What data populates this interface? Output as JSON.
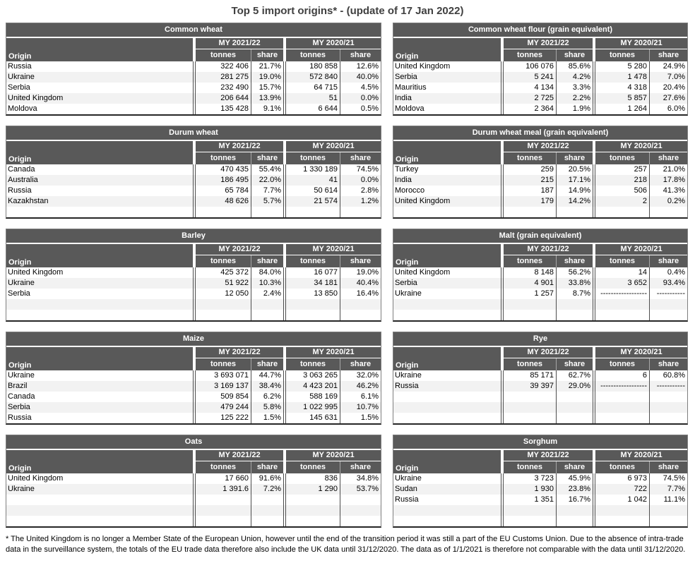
{
  "page_title": "Top 5 import origins* - (update of 17 Jan 2022)",
  "columns": {
    "origin": "Origin",
    "my_2021_22": "MY 2021/22",
    "my_2020_21": "MY 2020/21",
    "tonnes": "tonnes",
    "share": "share"
  },
  "colors": {
    "header_bg": "#595959",
    "header_text": "#ffffff",
    "row_alt": "#f2f2f2",
    "cell_border": "#4d4d4d",
    "outer_border": "#7f7f7f",
    "bottom_border": "#262626",
    "title_color": "#404040"
  },
  "tables": [
    {
      "panel": "left",
      "title": "Common wheat",
      "rows": [
        [
          "Russia",
          "322 406",
          "21.7%",
          "180 858",
          "12.6%"
        ],
        [
          "Ukraine",
          "281 275",
          "19.0%",
          "572 840",
          "40.0%"
        ],
        [
          "Serbia",
          "232 490",
          "15.7%",
          "64 715",
          "4.5%"
        ],
        [
          "United Kingdom",
          "206 644",
          "13.9%",
          "51",
          "0.0%"
        ],
        [
          "Moldova",
          "135 428",
          "9.1%",
          "6 644",
          "0.5%"
        ]
      ]
    },
    {
      "panel": "right",
      "title": "Common wheat flour (grain equivalent)",
      "rows": [
        [
          "United Kingdom",
          "106 076",
          "85.6%",
          "5 280",
          "24.9%"
        ],
        [
          "Serbia",
          "5 241",
          "4.2%",
          "1 478",
          "7.0%"
        ],
        [
          "Mauritius",
          "4 134",
          "3.3%",
          "4 318",
          "20.4%"
        ],
        [
          "India",
          "2 725",
          "2.2%",
          "5 857",
          "27.6%"
        ],
        [
          "Moldova",
          "2 364",
          "1.9%",
          "1 264",
          "6.0%"
        ]
      ]
    },
    {
      "panel": "left",
      "title": "Durum wheat",
      "rows": [
        [
          "Canada",
          "470 435",
          "55.4%",
          "1 330 189",
          "74.5%"
        ],
        [
          "Australia",
          "186 495",
          "22.0%",
          "41",
          "0.0%"
        ],
        [
          "Russia",
          "65 784",
          "7.7%",
          "50 614",
          "2.8%"
        ],
        [
          "Kazakhstan",
          "48 626",
          "5.7%",
          "21 574",
          "1.2%"
        ],
        [
          "",
          "",
          "",
          "",
          ""
        ]
      ]
    },
    {
      "panel": "right",
      "title": "Durum wheat meal (grain equivalent)",
      "rows": [
        [
          "Turkey",
          "259",
          "20.5%",
          "257",
          "21.0%"
        ],
        [
          "India",
          "215",
          "17.1%",
          "218",
          "17.8%"
        ],
        [
          "Morocco",
          "187",
          "14.9%",
          "506",
          "41.3%"
        ],
        [
          "United Kingdom",
          "179",
          "14.2%",
          "2",
          "0.2%"
        ],
        [
          "",
          "",
          "",
          "",
          ""
        ]
      ]
    },
    {
      "panel": "left",
      "title": "Barley",
      "rows": [
        [
          "United Kingdom",
          "425 372",
          "84.0%",
          "16 077",
          "19.0%"
        ],
        [
          "Ukraine",
          "51 922",
          "10.3%",
          "34 181",
          "40.4%"
        ],
        [
          "Serbia",
          "12 050",
          "2.4%",
          "13 850",
          "16.4%"
        ],
        [
          "",
          "",
          "",
          "",
          ""
        ],
        [
          "",
          "",
          "",
          "",
          ""
        ]
      ]
    },
    {
      "panel": "right",
      "title": "Malt (grain equivalent)",
      "rows": [
        [
          "United Kingdom",
          "8 148",
          "56.2%",
          "14",
          "0.4%"
        ],
        [
          "Serbia",
          "4 901",
          "33.8%",
          "3 652",
          "93.4%"
        ],
        [
          "Ukraine",
          "1 257",
          "8.7%",
          "------------------",
          "-----------"
        ],
        [
          "",
          "",
          "",
          "",
          ""
        ],
        [
          "",
          "",
          "",
          "",
          ""
        ]
      ]
    },
    {
      "panel": "left",
      "title": "Maize",
      "rows": [
        [
          "Ukraine",
          "3 693 071",
          "44.7%",
          "3 063 265",
          "32.0%"
        ],
        [
          "Brazil",
          "3 169 137",
          "38.4%",
          "4 423 201",
          "46.2%"
        ],
        [
          "Canada",
          "509 854",
          "6.2%",
          "588 169",
          "6.1%"
        ],
        [
          "Serbia",
          "479 244",
          "5.8%",
          "1 022 995",
          "10.7%"
        ],
        [
          "Russia",
          "125 222",
          "1.5%",
          "145 631",
          "1.5%"
        ]
      ]
    },
    {
      "panel": "right",
      "title": "Rye",
      "rows": [
        [
          "Ukraine",
          "85 171",
          "62.7%",
          "6",
          "60.8%"
        ],
        [
          "Russia",
          "39 397",
          "29.0%",
          "------------------",
          "-----------"
        ],
        [
          "",
          "",
          "",
          "",
          ""
        ],
        [
          "",
          "",
          "",
          "",
          ""
        ],
        [
          "",
          "",
          "",
          "",
          ""
        ]
      ]
    },
    {
      "panel": "left",
      "title": "Oats",
      "rows": [
        [
          "United Kingdom",
          "17 660",
          "91.6%",
          "836",
          "34.8%"
        ],
        [
          "Ukraine",
          "1 391.6",
          "7.2%",
          "1 290",
          "53.7%"
        ],
        [
          "",
          "",
          "",
          "",
          ""
        ],
        [
          "",
          "",
          "",
          "",
          ""
        ],
        [
          "",
          "",
          "",
          "",
          ""
        ]
      ]
    },
    {
      "panel": "right",
      "title": "Sorghum",
      "rows": [
        [
          "Ukraine",
          "3 723",
          "45.9%",
          "6 973",
          "74.5%"
        ],
        [
          "Sudan",
          "1 930",
          "23.8%",
          "722",
          "7.7%"
        ],
        [
          "Russia",
          "1 351",
          "16.7%",
          "1 042",
          "11.1%"
        ],
        [
          "",
          "",
          "",
          "",
          ""
        ],
        [
          "",
          "",
          "",
          "",
          ""
        ]
      ]
    }
  ],
  "footnote": "* The United Kingdom is no longer a Member State of the European Union, however until the end of the transition period it was still a part of the EU Customs Union. Due to the absence of intra-trade data in the surveillance system, the totals of the EU trade data  therefore also include the UK data until 31/12/2020. The data as of 1/1/2021 is therefore not comparable with the data until 31/12/2020."
}
